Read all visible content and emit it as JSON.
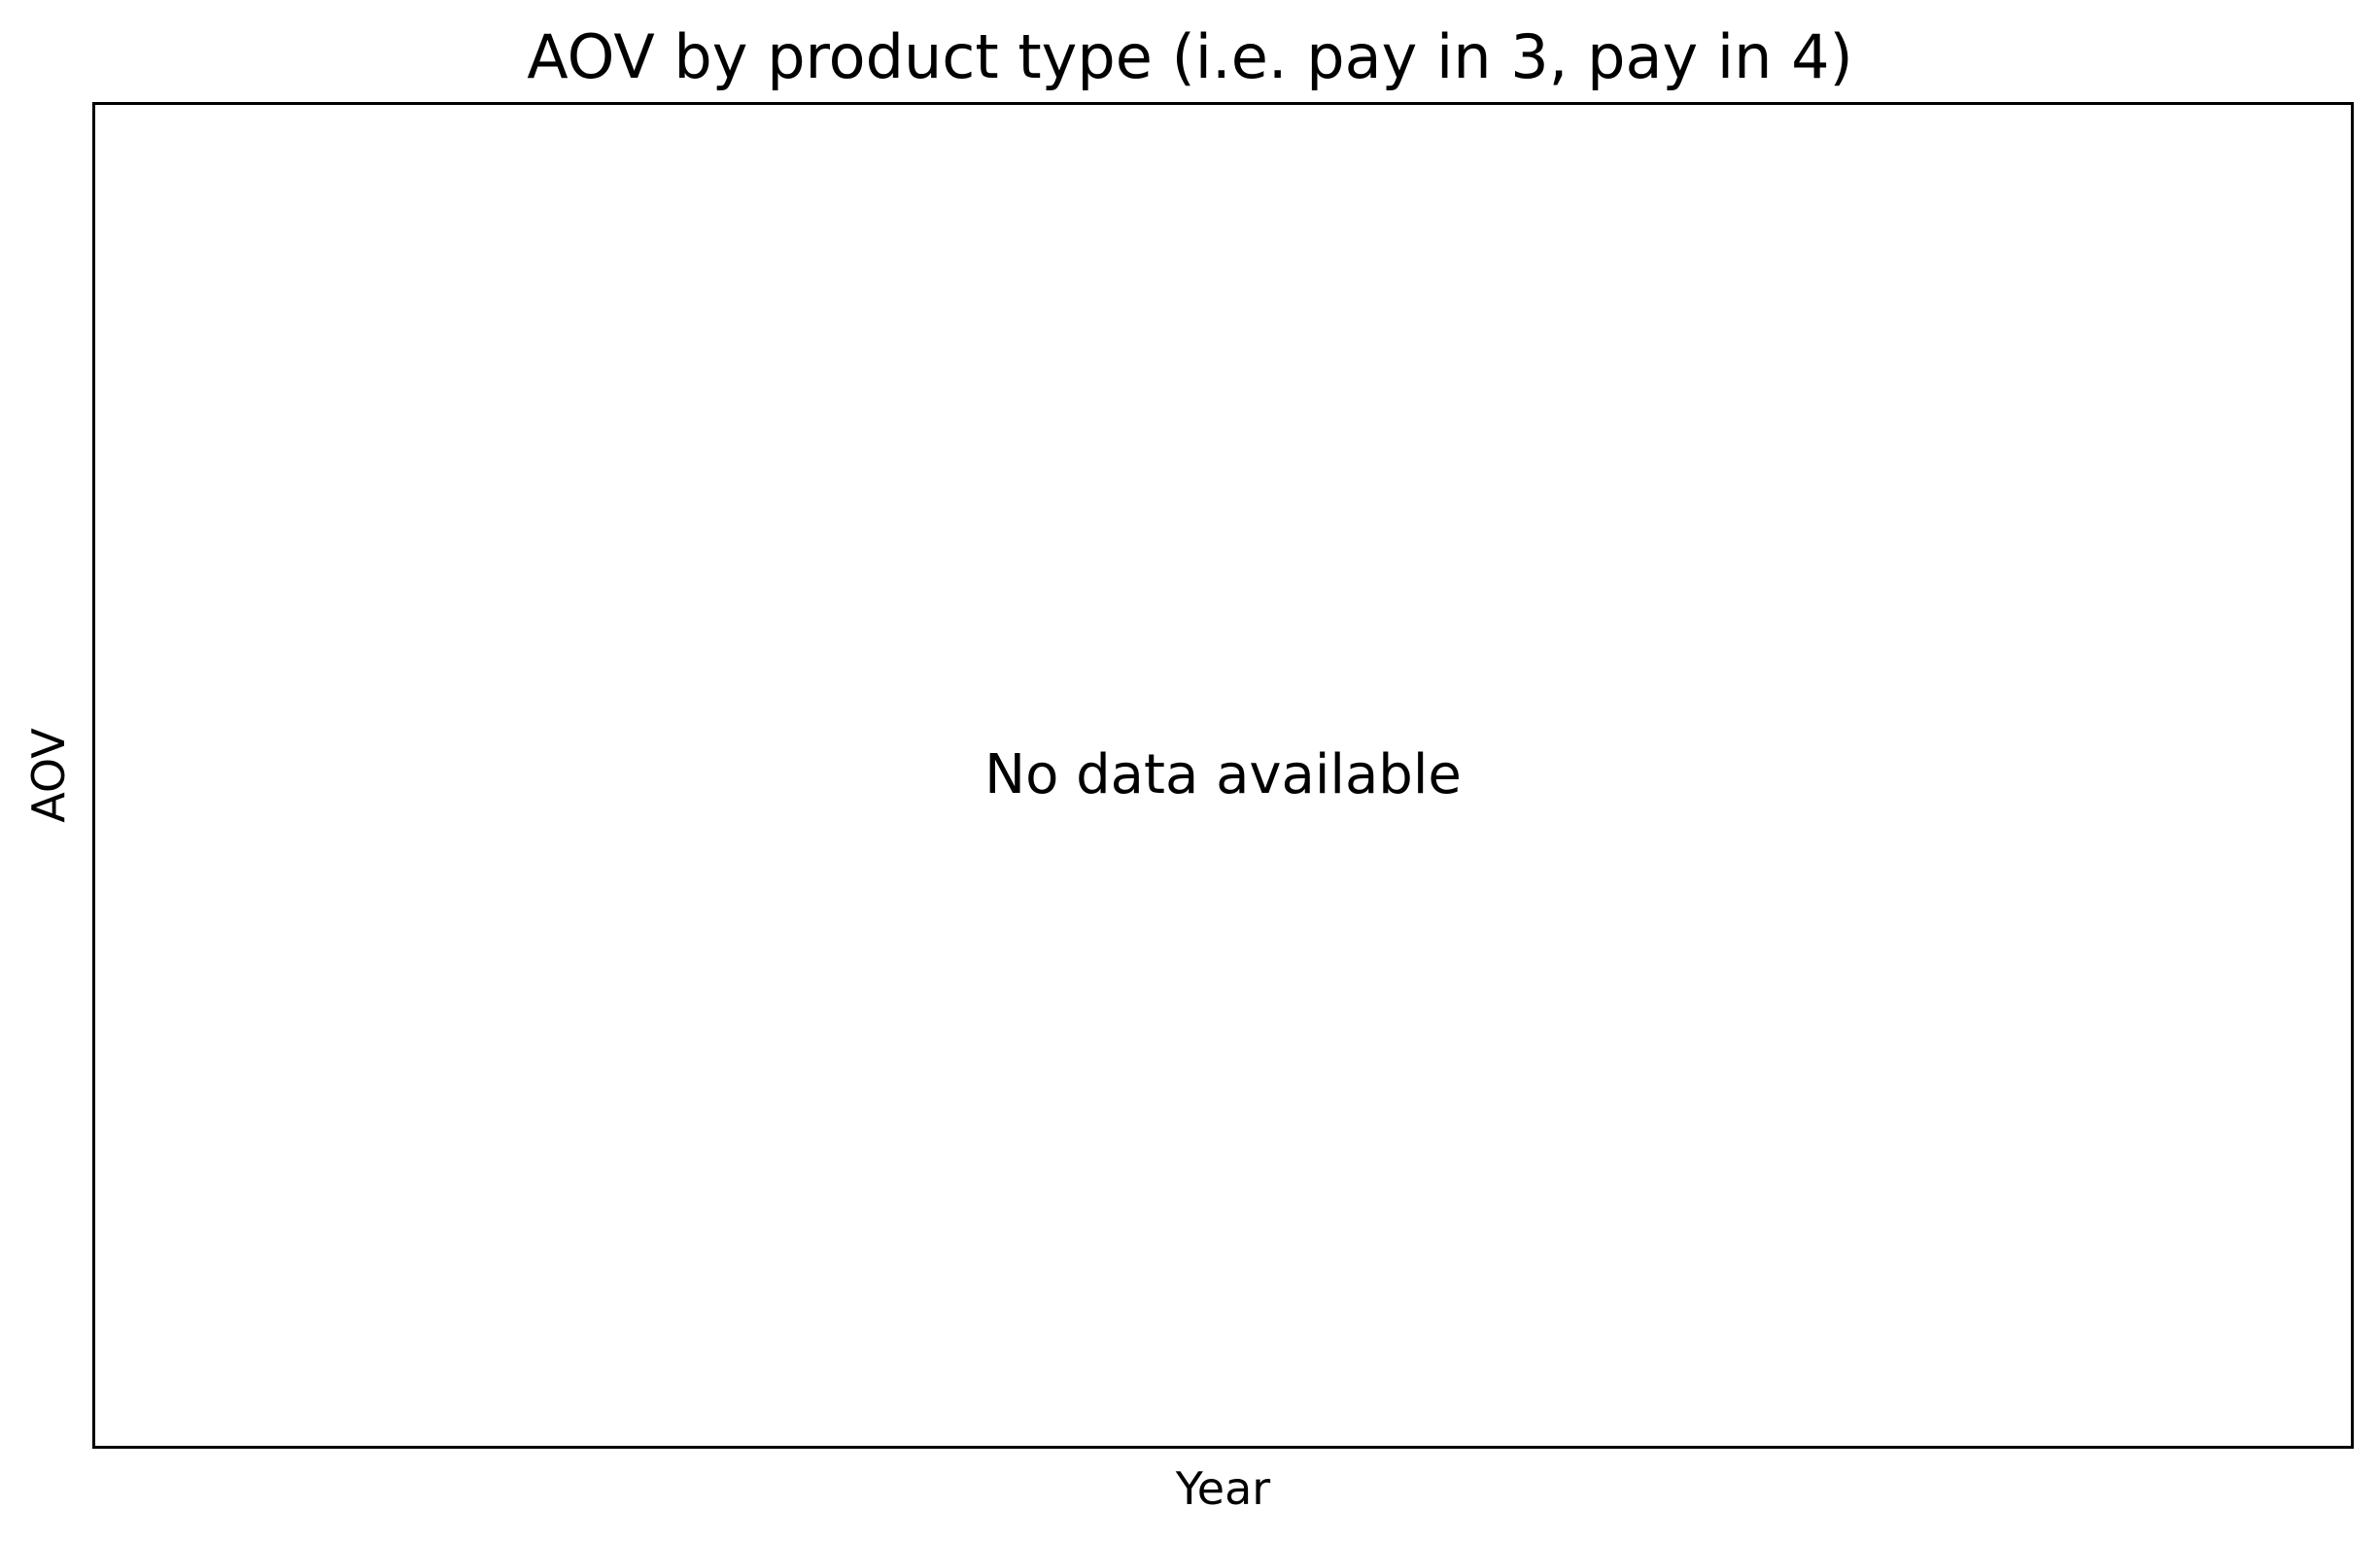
{
  "chart_data": {
    "type": "line",
    "title": "AOV by product type (i.e. pay in 3, pay in 4)",
    "xlabel": "Year",
    "ylabel": "AOV",
    "series": [],
    "annotations": [
      "No data available"
    ],
    "grid": false,
    "legend": "none"
  },
  "colors": {
    "background": "#ffffff",
    "frame": "#000000",
    "text": "#000000"
  }
}
